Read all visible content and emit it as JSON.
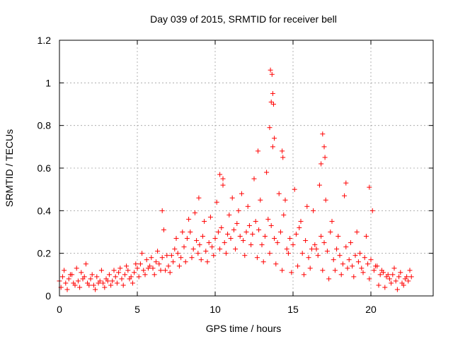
{
  "chart_data": {
    "type": "scatter",
    "title": "Day 039 of 2015, SRMTID for receiver bell",
    "xlabel": "GPS time / hours",
    "ylabel": "SRMTID / TECUs",
    "xlim": [
      0,
      24
    ],
    "ylim": [
      0,
      1.2
    ],
    "x_ticks": [
      0,
      5,
      10,
      15,
      20
    ],
    "x_tick_labels": [
      "0",
      "5",
      "10",
      "15",
      "20"
    ],
    "y_ticks": [
      0,
      0.2,
      0.4,
      0.6,
      0.8,
      1,
      1.2
    ],
    "y_tick_labels": [
      "0",
      "0.2",
      "0.4",
      "0.6",
      "0.8",
      "1",
      "1.2"
    ],
    "grid": true,
    "marker": "plus",
    "color": "#ff0000",
    "series": [
      {
        "name": "SRMTID",
        "x": [
          0.0,
          0.2,
          0.4,
          0.6,
          0.8,
          1.0,
          1.2,
          1.4,
          1.6,
          1.8,
          2.0,
          2.2,
          2.4,
          2.6,
          2.8,
          3.0,
          3.2,
          3.4,
          3.6,
          3.8,
          4.0,
          4.2,
          4.4,
          4.6,
          4.8,
          5.0,
          5.2,
          5.4,
          5.6,
          5.8,
          6.0,
          6.2,
          6.4,
          6.6,
          6.8,
          7.0,
          7.2,
          7.4,
          7.6,
          7.8,
          8.0,
          8.2,
          8.4,
          8.6,
          8.8,
          9.0,
          9.2,
          9.4,
          9.6,
          9.8,
          10.0,
          10.2,
          10.4,
          10.6,
          10.8,
          11.0,
          11.2,
          11.4,
          11.6,
          11.8,
          12.0,
          12.2,
          12.4,
          12.6,
          12.8,
          13.0,
          13.2,
          13.4,
          13.6,
          13.8,
          14.0,
          14.2,
          14.4,
          14.6,
          14.8,
          15.0,
          15.2,
          15.4,
          15.6,
          15.8,
          16.0,
          16.2,
          16.4,
          16.6,
          16.8,
          17.0,
          17.2,
          17.4,
          17.6,
          17.8,
          18.0,
          18.2,
          18.4,
          18.6,
          18.8,
          19.0,
          19.2,
          19.4,
          19.6,
          19.8,
          20.0,
          20.2,
          20.4,
          20.6,
          20.8,
          21.0,
          21.2,
          21.4,
          21.6,
          21.8,
          22.0,
          22.2,
          22.4,
          22.6,
          0.1,
          0.3,
          0.5,
          0.7,
          0.9,
          1.1,
          1.3,
          1.5,
          1.7,
          1.9,
          2.1,
          2.3,
          2.5,
          2.7,
          2.9,
          3.1,
          3.3,
          3.5,
          3.7,
          3.9,
          4.1,
          4.3,
          4.5,
          4.7,
          4.9,
          5.1,
          5.3,
          5.5,
          5.7,
          5.9,
          6.1,
          6.3,
          6.5,
          6.7,
          6.9,
          7.1,
          7.3,
          7.5,
          7.7,
          7.9,
          8.1,
          8.3,
          8.5,
          8.7,
          8.9,
          9.1,
          9.3,
          9.5,
          9.7,
          9.9,
          10.1,
          10.3,
          10.5,
          10.7,
          10.9,
          11.1,
          11.3,
          11.5,
          11.7,
          11.9,
          12.1,
          12.3,
          12.5,
          12.7,
          12.9,
          13.1,
          13.3,
          13.5,
          13.7,
          13.9,
          14.1,
          14.3,
          14.5,
          14.7,
          14.9,
          15.1,
          15.3,
          15.5,
          15.7,
          15.9,
          16.1,
          16.3,
          16.5,
          16.7,
          16.9,
          17.1,
          17.3,
          17.5,
          17.7,
          17.9,
          18.1,
          18.3,
          18.5,
          18.7,
          18.9,
          19.1,
          19.3,
          19.5,
          19.7,
          19.9,
          20.1,
          20.3,
          20.5,
          20.7,
          20.9,
          21.1,
          21.3,
          21.5,
          21.7,
          21.9,
          22.1,
          22.3,
          22.5,
          13.55,
          13.65,
          13.7,
          13.75,
          13.6,
          13.5,
          13.8,
          12.75,
          14.3,
          14.35,
          16.9,
          17.0,
          17.05,
          19.9,
          18.4,
          10.3,
          10.5,
          8.95,
          6.6,
          16.8
        ],
        "y": [
          0.07,
          0.09,
          0.06,
          0.08,
          0.1,
          0.05,
          0.07,
          0.11,
          0.09,
          0.06,
          0.08,
          0.05,
          0.09,
          0.07,
          0.06,
          0.08,
          0.1,
          0.07,
          0.09,
          0.11,
          0.08,
          0.1,
          0.12,
          0.09,
          0.11,
          0.13,
          0.15,
          0.12,
          0.17,
          0.14,
          0.13,
          0.16,
          0.15,
          0.18,
          0.12,
          0.14,
          0.19,
          0.22,
          0.2,
          0.18,
          0.23,
          0.27,
          0.3,
          0.22,
          0.26,
          0.24,
          0.28,
          0.21,
          0.25,
          0.23,
          0.27,
          0.3,
          0.32,
          0.25,
          0.29,
          0.27,
          0.31,
          0.34,
          0.28,
          0.26,
          0.3,
          0.33,
          0.29,
          0.35,
          0.31,
          0.24,
          0.28,
          0.36,
          0.33,
          0.27,
          0.25,
          0.3,
          0.38,
          0.22,
          0.27,
          0.24,
          0.29,
          0.32,
          0.2,
          0.26,
          0.18,
          0.22,
          0.24,
          0.19,
          0.28,
          0.25,
          0.21,
          0.3,
          0.17,
          0.22,
          0.19,
          0.15,
          0.23,
          0.17,
          0.14,
          0.19,
          0.16,
          0.13,
          0.18,
          0.15,
          0.17,
          0.12,
          0.14,
          0.1,
          0.11,
          0.09,
          0.08,
          0.1,
          0.07,
          0.09,
          0.06,
          0.08,
          0.07,
          0.09,
          0.04,
          0.12,
          0.03,
          0.1,
          0.06,
          0.13,
          0.04,
          0.08,
          0.15,
          0.05,
          0.1,
          0.03,
          0.06,
          0.12,
          0.04,
          0.07,
          0.05,
          0.12,
          0.06,
          0.13,
          0.05,
          0.14,
          0.08,
          0.06,
          0.15,
          0.09,
          0.2,
          0.1,
          0.13,
          0.18,
          0.1,
          0.21,
          0.12,
          0.31,
          0.19,
          0.11,
          0.16,
          0.27,
          0.14,
          0.3,
          0.16,
          0.36,
          0.18,
          0.39,
          0.2,
          0.17,
          0.35,
          0.16,
          0.37,
          0.19,
          0.44,
          0.22,
          0.52,
          0.2,
          0.38,
          0.46,
          0.22,
          0.4,
          0.48,
          0.19,
          0.42,
          0.24,
          0.55,
          0.18,
          0.45,
          0.16,
          0.58,
          0.2,
          0.7,
          0.15,
          0.48,
          0.12,
          0.45,
          0.2,
          0.11,
          0.5,
          0.14,
          0.35,
          0.1,
          0.42,
          0.13,
          0.4,
          0.22,
          0.52,
          0.12,
          0.45,
          0.08,
          0.35,
          0.12,
          0.28,
          0.1,
          0.47,
          0.13,
          0.25,
          0.09,
          0.3,
          0.2,
          0.11,
          0.28,
          0.08,
          0.4,
          0.14,
          0.05,
          0.12,
          0.04,
          0.1,
          0.06,
          0.13,
          0.03,
          0.11,
          0.05,
          0.09,
          0.12,
          1.06,
          1.04,
          0.95,
          0.9,
          0.91,
          0.79,
          0.74,
          0.68,
          0.68,
          0.65,
          0.76,
          0.7,
          0.65,
          0.51,
          0.53,
          0.57,
          0.55,
          0.46,
          0.4,
          0.62
        ]
      }
    ]
  }
}
